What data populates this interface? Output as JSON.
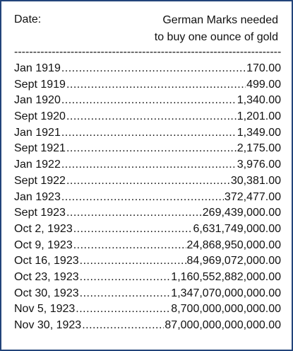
{
  "header": {
    "date_label": "Date:",
    "value_label_line1": "German Marks needed",
    "value_label_line2": "to buy one ounce of gold"
  },
  "rows": [
    {
      "date": "Jan 1919",
      "value": "170.00"
    },
    {
      "date": "Sept 1919",
      "value": "499.00"
    },
    {
      "date": "Jan 1920",
      "value": "1,340.00"
    },
    {
      "date": "Sept 1920",
      "value": "1,201.00"
    },
    {
      "date": "Jan 1921",
      "value": "1,349.00"
    },
    {
      "date": "Sept 1921",
      "value": "2,175.00"
    },
    {
      "date": "Jan 1922",
      "value": "3,976.00"
    },
    {
      "date": "Sept 1922",
      "value": "30,381.00"
    },
    {
      "date": "Jan 1923",
      "value": "372,477.00"
    },
    {
      "date": "Sept 1923",
      "value": "269,439,000.00"
    },
    {
      "date": "Oct 2, 1923",
      "value": "6,631,749,000.00"
    },
    {
      "date": "Oct 9, 1923",
      "value": "24,868,950,000.00"
    },
    {
      "date": "Oct 16, 1923",
      "value": "84,969,072,000.00"
    },
    {
      "date": "Oct 23, 1923",
      "value": "1,160,552,882,000.00"
    },
    {
      "date": "Oct 30, 1923",
      "value": "1,347,070,000,000.00"
    },
    {
      "date": "Nov 5, 1923",
      "value": "8,700,000,000,000.00"
    },
    {
      "date": "Nov 30, 1923",
      "value": "87,000,000,000,000.00"
    }
  ],
  "colors": {
    "border": "#23447a",
    "text": "#111111"
  }
}
